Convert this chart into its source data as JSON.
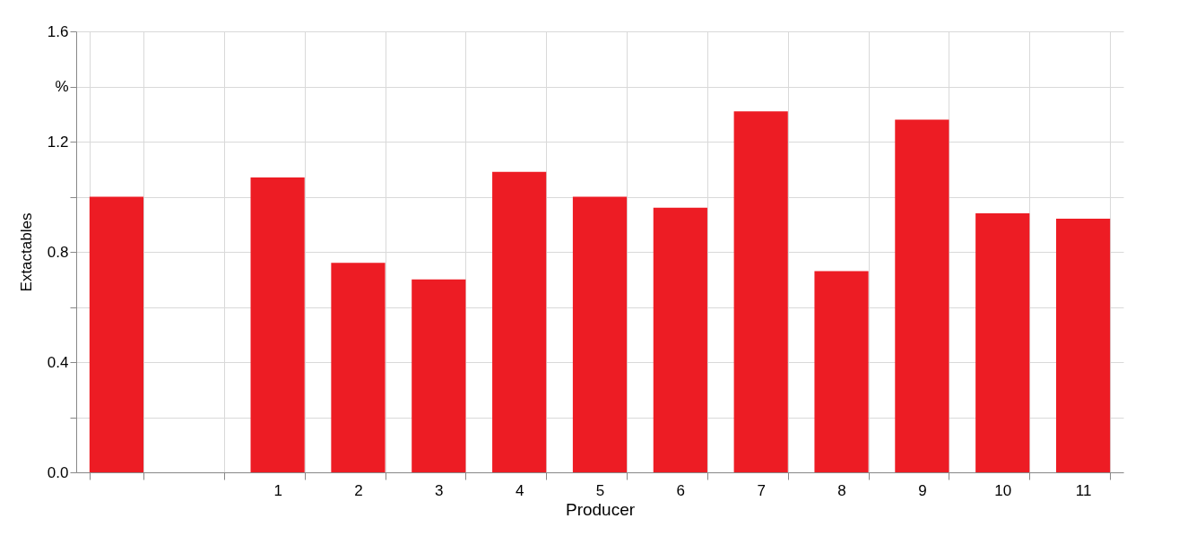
{
  "chart_data": {
    "type": "bar",
    "xlabel": "Producer",
    "ylabel": "Extactables",
    "categories": [
      null,
      null,
      "1",
      "2",
      "3",
      "4",
      "5",
      "6",
      "7",
      "8",
      "9",
      "10",
      "11"
    ],
    "values": [
      1.0,
      null,
      1.07,
      0.76,
      0.7,
      1.09,
      1.0,
      0.96,
      1.31,
      0.73,
      1.28,
      0.94,
      0.92
    ],
    "color": "#ed1c24",
    "ylim": [
      0,
      1.6
    ],
    "yticks": [
      {
        "value": 0,
        "label": "0.0"
      },
      {
        "value": 0.2,
        "label": null
      },
      {
        "value": 0.4,
        "label": "0.4"
      },
      {
        "value": 0.6,
        "label": null
      },
      {
        "value": 0.8,
        "label": "0.8"
      },
      {
        "value": 1.0,
        "label": null
      },
      {
        "value": 1.2,
        "label": "1.2"
      },
      {
        "value": 1.4,
        "label": "%"
      },
      {
        "value": 1.6,
        "label": "1.6"
      }
    ],
    "grid": true
  }
}
